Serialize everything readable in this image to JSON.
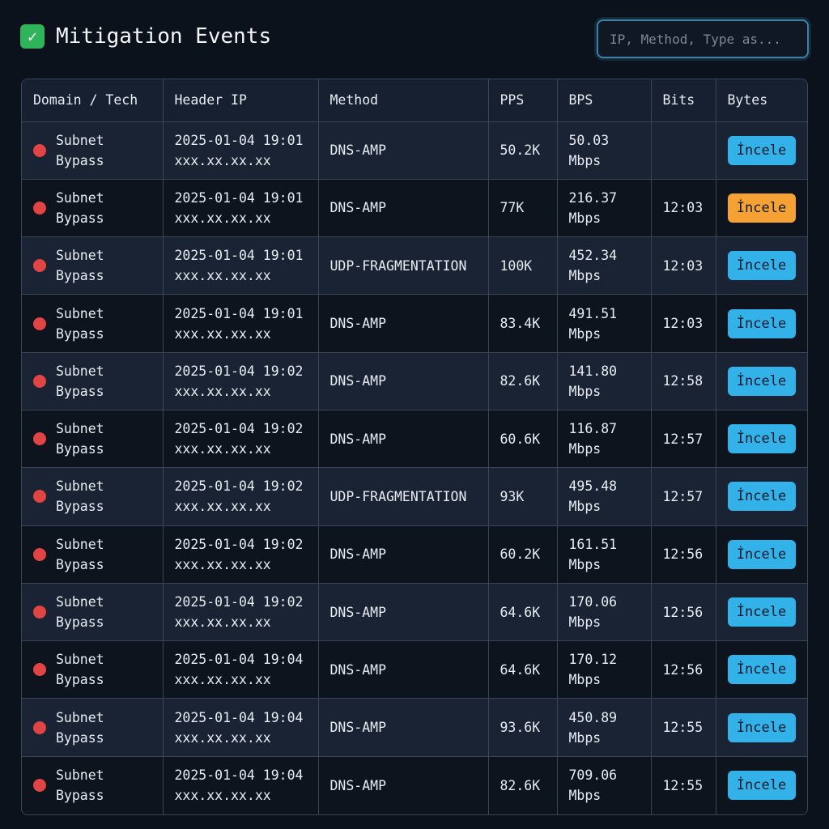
{
  "header": {
    "title": "Mitigation Events",
    "icon": "check-icon",
    "search_placeholder": "IP, Method, Type as..."
  },
  "colors": {
    "accent": "#33b2ea",
    "warning": "#f5a133",
    "status_dot": "#e04444",
    "check": "#2fb45a"
  },
  "table": {
    "columns": [
      "Domain / Tech",
      "Header IP",
      "Method",
      "PPS",
      "BPS",
      "Bits",
      "Bytes"
    ],
    "rows": [
      {
        "domain": "Subnet",
        "tech": "Bypass",
        "date": "2025-01-04 19:01",
        "ip": "xxx.xx.xx.xx",
        "method": "DNS-AMP",
        "pps": "50.2K",
        "bps": "50.03",
        "bps_unit": "Mbps",
        "bits": "",
        "action": "İncele",
        "action_state": "default"
      },
      {
        "domain": "Subnet",
        "tech": "Bypass",
        "date": "2025-01-04 19:01",
        "ip": "xxx.xx.xx.xx",
        "method": "DNS-AMP",
        "pps": "77K",
        "bps": "216.37",
        "bps_unit": "Mbps",
        "bits": "12:03",
        "action": "İncele",
        "action_state": "warning"
      },
      {
        "domain": "Subnet",
        "tech": "Bypass",
        "date": "2025-01-04 19:01",
        "ip": "xxx.xx.xx.xx",
        "method": "UDP-FRAGMENTATION",
        "pps": "100K",
        "bps": "452.34",
        "bps_unit": "Mbps",
        "bits": "12:03",
        "action": "İncele",
        "action_state": "default"
      },
      {
        "domain": "Subnet",
        "tech": "Bypass",
        "date": "2025-01-04 19:01",
        "ip": "xxx.xx.xx.xx",
        "method": "DNS-AMP",
        "pps": "83.4K",
        "bps": "491.51",
        "bps_unit": "Mbps",
        "bits": "12:03",
        "action": "İncele",
        "action_state": "default"
      },
      {
        "domain": "Subnet",
        "tech": "Bypass",
        "date": "2025-01-04 19:02",
        "ip": "xxx.xx.xx.xx",
        "method": "DNS-AMP",
        "pps": "82.6K",
        "bps": "141.80",
        "bps_unit": "Mbps",
        "bits": "12:58",
        "action": "İncele",
        "action_state": "default"
      },
      {
        "domain": "Subnet",
        "tech": "Bypass",
        "date": "2025-01-04 19:02",
        "ip": "xxx.xx.xx.xx",
        "method": "DNS-AMP",
        "pps": "60.6K",
        "bps": "116.87",
        "bps_unit": "Mbps",
        "bits": "12:57",
        "action": "İncele",
        "action_state": "default"
      },
      {
        "domain": "Subnet",
        "tech": "Bypass",
        "date": "2025-01-04 19:02",
        "ip": "xxx.xx.xx.xx",
        "method": "UDP-FRAGMENTATION",
        "pps": "93K",
        "bps": "495.48",
        "bps_unit": "Mbps",
        "bits": "12:57",
        "action": "İncele",
        "action_state": "default"
      },
      {
        "domain": "Subnet",
        "tech": "Bypass",
        "date": "2025-01-04 19:02",
        "ip": "xxx.xx.xx.xx",
        "method": "DNS-AMP",
        "pps": "60.2K",
        "bps": "161.51",
        "bps_unit": "Mbps",
        "bits": "12:56",
        "action": "İncele",
        "action_state": "default"
      },
      {
        "domain": "Subnet",
        "tech": "Bypass",
        "date": "2025-01-04 19:02",
        "ip": "xxx.xx.xx.xx",
        "method": "DNS-AMP",
        "pps": "64.6K",
        "bps": "170.06",
        "bps_unit": "Mbps",
        "bits": "12:56",
        "action": "İncele",
        "action_state": "default"
      },
      {
        "domain": "Subnet",
        "tech": "Bypass",
        "date": "2025-01-04 19:04",
        "ip": "xxx.xx.xx.xx",
        "method": "DNS-AMP",
        "pps": "64.6K",
        "bps": "170.12",
        "bps_unit": "Mbps",
        "bits": "12:56",
        "action": "İncele",
        "action_state": "default"
      },
      {
        "domain": "Subnet",
        "tech": "Bypass",
        "date": "2025-01-04 19:04",
        "ip": "xxx.xx.xx.xx",
        "method": "DNS-AMP",
        "pps": "93.6K",
        "bps": "450.89",
        "bps_unit": "Mbps",
        "bits": "12:55",
        "action": "İncele",
        "action_state": "default"
      },
      {
        "domain": "Subnet",
        "tech": "Bypass",
        "date": "2025-01-04 19:04",
        "ip": "xxx.xx.xx.xx",
        "method": "DNS-AMP",
        "pps": "82.6K",
        "bps": "709.06",
        "bps_unit": "Mbps",
        "bits": "12:55",
        "action": "İncele",
        "action_state": "default"
      }
    ]
  }
}
